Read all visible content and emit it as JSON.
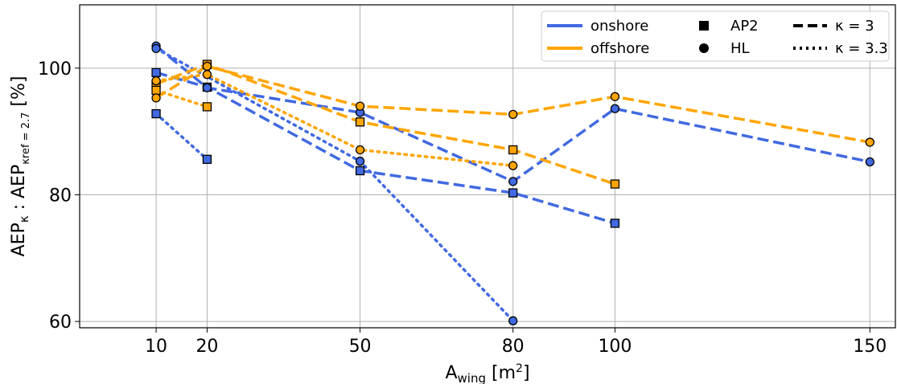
{
  "chart_data": {
    "type": "line",
    "xlabel": "A_wing [m^2]",
    "ylabel": "AEP_κ : AEP_κref=2.7 [%]",
    "xlim": [
      -5,
      155
    ],
    "ylim": [
      59,
      110
    ],
    "x_ticks": [
      10,
      20,
      50,
      80,
      100,
      150
    ],
    "y_ticks": [
      60,
      80,
      100
    ],
    "grid": true,
    "legend_placement": "top-right",
    "legend": {
      "colors": [
        {
          "label": "onshore",
          "color": "#4169e1"
        },
        {
          "label": "offshore",
          "color": "#ffa500"
        }
      ],
      "markers": [
        {
          "label": "AP2",
          "marker": "square"
        },
        {
          "label": "HL",
          "marker": "circle"
        }
      ],
      "linestyles": [
        {
          "label": "κ = 3",
          "style": "dashed"
        },
        {
          "label": "κ = 3.3",
          "style": "dotted"
        }
      ]
    },
    "series": [
      {
        "site": "onshore",
        "model": "AP2",
        "kappa": "3",
        "color": "#4169e1",
        "marker": "square",
        "dash": "dashed",
        "x": [
          10,
          20,
          50,
          80,
          100
        ],
        "y": [
          99.3,
          97.0,
          83.8,
          80.3,
          75.5
        ]
      },
      {
        "site": "onshore",
        "model": "AP2",
        "kappa": "3.3",
        "color": "#4169e1",
        "marker": "square",
        "dash": "dotted",
        "x": [
          10,
          20
        ],
        "y": [
          92.8,
          85.6
        ]
      },
      {
        "site": "onshore",
        "model": "HL",
        "kappa": "3",
        "color": "#4169e1",
        "marker": "circle",
        "dash": "dashed",
        "x": [
          10,
          20,
          50,
          80,
          100,
          150
        ],
        "y": [
          103.5,
          96.9,
          93.0,
          82.1,
          93.6,
          85.2
        ]
      },
      {
        "site": "onshore",
        "model": "HL",
        "kappa": "3.3",
        "color": "#4169e1",
        "marker": "circle",
        "dash": "dotted",
        "x": [
          10,
          50,
          80
        ],
        "y": [
          103.1,
          85.3,
          60.1
        ]
      },
      {
        "site": "offshore",
        "model": "AP2",
        "kappa": "3",
        "color": "#ffa500",
        "marker": "square",
        "dash": "dashed",
        "x": [
          10,
          20,
          50,
          80,
          100
        ],
        "y": [
          97.5,
          100.6,
          91.5,
          87.1,
          81.7
        ]
      },
      {
        "site": "offshore",
        "model": "AP2",
        "kappa": "3.3",
        "color": "#ffa500",
        "marker": "square",
        "dash": "dotted",
        "x": [
          10,
          20
        ],
        "y": [
          96.5,
          93.9
        ]
      },
      {
        "site": "offshore",
        "model": "HL",
        "kappa": "3",
        "color": "#ffa500",
        "marker": "circle",
        "dash": "dashed",
        "x": [
          10,
          20,
          50,
          80,
          100,
          150
        ],
        "y": [
          95.3,
          100.3,
          94.0,
          92.7,
          95.5,
          88.3
        ]
      },
      {
        "site": "offshore",
        "model": "HL",
        "kappa": "3.3",
        "color": "#ffa500",
        "marker": "circle",
        "dash": "dotted",
        "x": [
          10,
          20,
          50,
          80
        ],
        "y": [
          98.0,
          99.0,
          87.1,
          84.6
        ]
      }
    ]
  }
}
